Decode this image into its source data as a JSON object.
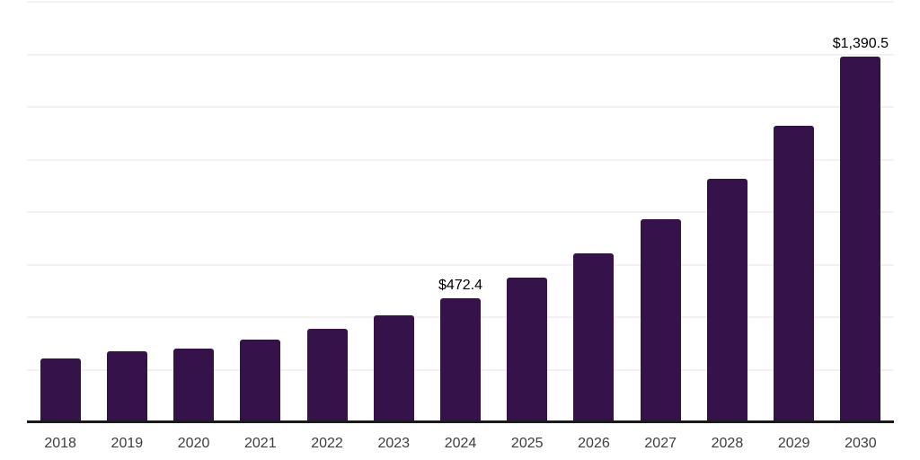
{
  "chart_data": {
    "type": "bar",
    "title": "",
    "xlabel": "",
    "ylabel": "",
    "categories": [
      "2018",
      "2019",
      "2020",
      "2021",
      "2022",
      "2023",
      "2024",
      "2025",
      "2026",
      "2027",
      "2028",
      "2029",
      "2030"
    ],
    "values": [
      244,
      271,
      282,
      314,
      356,
      408,
      472.4,
      551,
      643,
      773,
      926,
      1127,
      1390.5
    ],
    "bar_labels": [
      "",
      "",
      "",
      "",
      "",
      "",
      "$472.4",
      "",
      "",
      "",
      "",
      "",
      "$1,390.5"
    ],
    "ylim": [
      0,
      1600
    ],
    "grid": true,
    "grid_step": 200,
    "y_tick_labels_visible": false,
    "legend": false
  },
  "style": {
    "bar_color": "#36124B",
    "axis_line_color": "#1b1b1b",
    "gridline_color": "#f2f2f2",
    "tick_label_color": "#3d3d3d",
    "data_label_color": "#000000",
    "background_color": "#ffffff"
  }
}
